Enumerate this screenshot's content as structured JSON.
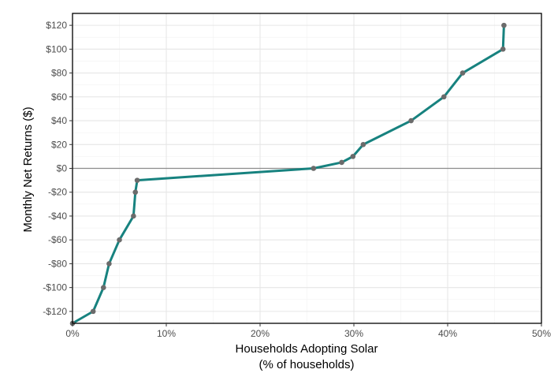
{
  "chart_data": {
    "type": "line",
    "xlabel_line1": "Households Adopting Solar",
    "xlabel_line2": "(% of households)",
    "ylabel": "Monthly Net Returns ($)",
    "xlim": [
      0,
      50
    ],
    "ylim": [
      -130,
      130
    ],
    "x_ticks": [
      0,
      10,
      20,
      30,
      40,
      50
    ],
    "x_tick_labels": [
      "0%",
      "10%",
      "20%",
      "30%",
      "40%",
      "50%"
    ],
    "y_ticks": [
      -120,
      -100,
      -80,
      -60,
      -40,
      -20,
      0,
      20,
      40,
      60,
      80,
      100,
      120
    ],
    "y_tick_labels": [
      "-$120",
      "-$100",
      "-$80",
      "-$60",
      "-$40",
      "-$20",
      "$0",
      "$20",
      "$40",
      "$60",
      "$80",
      "$100",
      "$120"
    ],
    "grid": true,
    "reference_line_y": 0,
    "series": [
      {
        "x": [
          0,
          2.2,
          3.3,
          3.9,
          5.0,
          6.5,
          6.7,
          6.9,
          25.7,
          28.7,
          29.9,
          31.0,
          36.1,
          39.6,
          41.6,
          45.9,
          46.0
        ],
        "y": [
          -130,
          -120,
          -100,
          -80,
          -60,
          -40,
          -20,
          -10,
          0,
          5,
          10,
          20,
          40,
          60,
          80,
          100,
          120
        ]
      }
    ],
    "colors": {
      "line": "#17827f",
      "points": "#6b6b6b",
      "grid_major": "#e6e6e6",
      "grid_minor": "#f2f2f2",
      "zero_line": "#8c8c8c",
      "frame": "#000000"
    }
  }
}
